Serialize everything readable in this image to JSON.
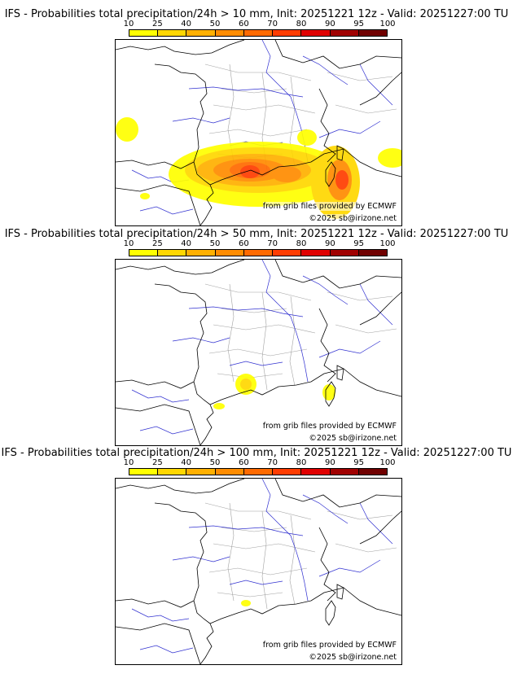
{
  "colors": {
    "bins": [
      "#ffff00",
      "#ffd700",
      "#ffb000",
      "#ff8c00",
      "#ff6a00",
      "#ff3c00",
      "#e00000",
      "#a00000",
      "#700000"
    ],
    "coast": "#000000",
    "rivers": "#3030d0",
    "regions": "#a0a0a0"
  },
  "panels": [
    {
      "title": "IFS - Probabilities total precipitation/24h > 10 mm, Init: 20251221 12z - Valid: 20251227:00 TU",
      "threshold_mm": 10,
      "colorbar_ticks": [
        "10",
        "25",
        "40",
        "50",
        "60",
        "70",
        "80",
        "90",
        "95",
        "100"
      ],
      "source": "from grib files provided by ECMWF",
      "copyright": "©2025 sb@irizone.net",
      "rain_areas": [
        {
          "cx": 175,
          "cy": 165,
          "rx": 110,
          "ry": 40,
          "level": 0
        },
        {
          "cx": 175,
          "cy": 160,
          "rx": 90,
          "ry": 28,
          "level": 1
        },
        {
          "cx": 170,
          "cy": 160,
          "rx": 70,
          "ry": 20,
          "level": 2
        },
        {
          "cx": 165,
          "cy": 160,
          "rx": 45,
          "ry": 14,
          "level": 3
        },
        {
          "cx": 165,
          "cy": 160,
          "rx": 25,
          "ry": 10,
          "level": 4
        },
        {
          "cx": 165,
          "cy": 162,
          "rx": 12,
          "ry": 8,
          "level": 5
        },
        {
          "cx": 270,
          "cy": 175,
          "rx": 30,
          "ry": 45,
          "level": 1
        },
        {
          "cx": 275,
          "cy": 172,
          "rx": 15,
          "ry": 25,
          "level": 3
        },
        {
          "cx": 278,
          "cy": 172,
          "rx": 8,
          "ry": 12,
          "level": 5
        },
        {
          "cx": 14,
          "cy": 110,
          "rx": 14,
          "ry": 15,
          "level": 0
        },
        {
          "cx": 235,
          "cy": 120,
          "rx": 12,
          "ry": 10,
          "level": 0
        },
        {
          "cx": 340,
          "cy": 145,
          "rx": 18,
          "ry": 12,
          "level": 0
        },
        {
          "cx": 210,
          "cy": 165,
          "rx": 18,
          "ry": 10,
          "level": 3
        },
        {
          "cx": 36,
          "cy": 192,
          "rx": 6,
          "ry": 4,
          "level": 0
        }
      ]
    },
    {
      "title": "IFS - Probabilities total precipitation/24h > 50 mm, Init: 20251221 12z - Valid: 20251227:00 TU",
      "threshold_mm": 50,
      "colorbar_ticks": [
        "10",
        "25",
        "40",
        "50",
        "60",
        "70",
        "80",
        "90",
        "95",
        "100"
      ],
      "source": "from grib files provided by ECMWF",
      "copyright": "©2025 sb@irizone.net",
      "rain_areas": [
        {
          "cx": 160,
          "cy": 153,
          "rx": 13,
          "ry": 13,
          "level": 0
        },
        {
          "cx": 160,
          "cy": 153,
          "rx": 7,
          "ry": 7,
          "level": 1
        },
        {
          "cx": 262,
          "cy": 163,
          "rx": 8,
          "ry": 10,
          "level": 0
        },
        {
          "cx": 127,
          "cy": 180,
          "rx": 7,
          "ry": 4,
          "level": 0
        }
      ]
    },
    {
      "title": "IFS - Probabilities total precipitation/24h > 100 mm, Init: 20251221 12z - Valid: 20251227:00 TU",
      "threshold_mm": 100,
      "colorbar_ticks": [
        "10",
        "25",
        "40",
        "50",
        "60",
        "70",
        "80",
        "90",
        "95",
        "100"
      ],
      "source": "from grib files provided by ECMWF",
      "copyright": "©2025 sb@irizone.net",
      "rain_areas": [
        {
          "cx": 160,
          "cy": 153,
          "rx": 6,
          "ry": 4,
          "level": 0
        }
      ]
    }
  ]
}
